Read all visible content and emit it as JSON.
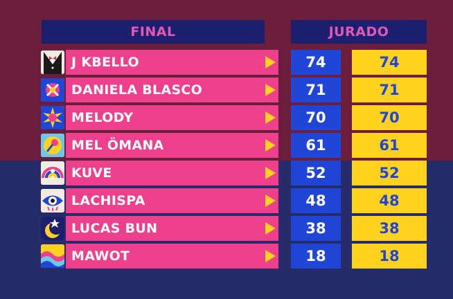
{
  "header": {
    "final_label": "FINAL",
    "jurado_label": "JURADO"
  },
  "colors": {
    "pink": "#ee3f8c",
    "blue": "#1f46d6",
    "yellow": "#ffd21f",
    "header_bg": "#1c1f6e",
    "header_text": "#e458b5"
  },
  "rows": [
    {
      "name": "J KBELLO",
      "score": "74",
      "total": "74",
      "avatar_icon": "tuxedo-icon"
    },
    {
      "name": "DANIELA BLASCO",
      "score": "71",
      "total": "71",
      "avatar_icon": "candy-icon"
    },
    {
      "name": "MELODY",
      "score": "70",
      "total": "70",
      "avatar_icon": "sun-icon"
    },
    {
      "name": "MEL ÖMANA",
      "score": "61",
      "total": "61",
      "avatar_icon": "microphone-icon"
    },
    {
      "name": "KUVE",
      "score": "52",
      "total": "52",
      "avatar_icon": "rainbow-icon"
    },
    {
      "name": "LACHISPA",
      "score": "48",
      "total": "48",
      "avatar_icon": "eye-icon"
    },
    {
      "name": "LUCAS BUN",
      "score": "38",
      "total": "38",
      "avatar_icon": "moon-star-icon"
    },
    {
      "name": "MAWOT",
      "score": "18",
      "total": "18",
      "avatar_icon": "wave-icon"
    }
  ]
}
